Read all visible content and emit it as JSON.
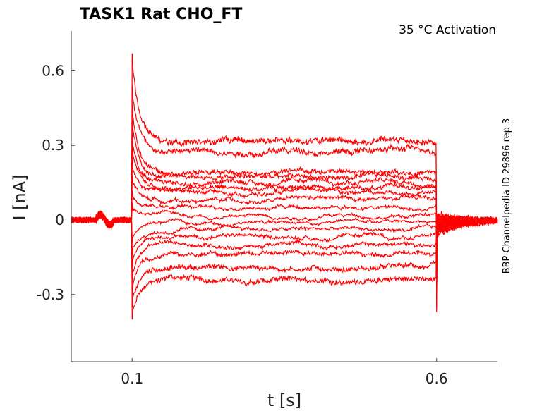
{
  "chart_data": {
    "type": "line",
    "title": "TASK1  Rat  CHO_FT",
    "annotation": "35 °C  Activation",
    "side_label": "BBP Channelpedia ID 29896 rep 3",
    "xlabel": "t [s]",
    "ylabel": "I [nA]",
    "xlim": [
      0.0,
      0.7
    ],
    "ylim": [
      -0.57,
      0.76
    ],
    "xticks": [
      0.1,
      0.6
    ],
    "xtick_labels": [
      "0.1",
      "0.6"
    ],
    "yticks": [
      0.6,
      0.3,
      0,
      -0.3
    ],
    "ytick_labels": [
      "0.6",
      "0.3",
      "0",
      "-0.3"
    ],
    "grid": false,
    "legend": "none",
    "color": "#ff0000",
    "step_start": 0.1,
    "step_end": 0.6,
    "series": [
      {
        "steady": -0.24,
        "peak": -0.38,
        "tail": 0.02
      },
      {
        "steady": -0.19,
        "peak": -0.33,
        "tail": 0.01
      },
      {
        "steady": -0.14,
        "peak": -0.28,
        "tail": 0.015
      },
      {
        "steady": -0.1,
        "peak": -0.22,
        "tail": 0.005
      },
      {
        "steady": -0.07,
        "peak": -0.17,
        "tail": 0.0
      },
      {
        "steady": -0.04,
        "peak": -0.12,
        "tail": -0.005
      },
      {
        "steady": -0.01,
        "peak": -0.07,
        "tail": 0.0
      },
      {
        "steady": 0.02,
        "peak": 0.05,
        "tail": -0.01
      },
      {
        "steady": 0.05,
        "peak": 0.1,
        "tail": -0.015
      },
      {
        "steady": 0.08,
        "peak": 0.16,
        "tail": -0.02
      },
      {
        "steady": 0.11,
        "peak": 0.22,
        "tail": -0.025
      },
      {
        "steady": 0.13,
        "peak": 0.27,
        "tail": -0.03
      },
      {
        "steady": 0.15,
        "peak": 0.32,
        "tail": -0.035
      },
      {
        "steady": 0.17,
        "peak": 0.38,
        "tail": -0.04
      },
      {
        "steady": 0.19,
        "peak": 0.44,
        "tail": -0.045
      },
      {
        "steady": 0.28,
        "peak": 0.52,
        "tail": -0.05
      },
      {
        "steady": 0.32,
        "peak": 0.65,
        "tail": -0.06
      }
    ]
  }
}
